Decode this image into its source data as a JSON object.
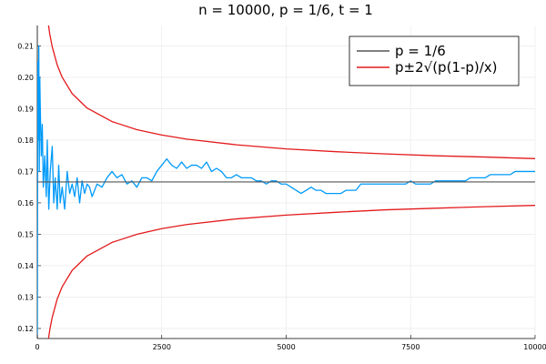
{
  "chart_data": {
    "type": "line",
    "title": "n = 10000,  p = 1/6,  t = 1",
    "xlabel": "",
    "ylabel": "",
    "xlim": [
      0,
      10000
    ],
    "ylim": [
      0.1168,
      0.2165
    ],
    "x_ticks": [
      0,
      2500,
      5000,
      7500,
      10000
    ],
    "x_tick_labels": [
      "0",
      "2500",
      "5000",
      "7500",
      "10000"
    ],
    "y_ticks": [
      0.12,
      0.13,
      0.14,
      0.15,
      0.16,
      0.17,
      0.18,
      0.19,
      0.2,
      0.21
    ],
    "y_tick_labels": [
      "0.12",
      "0.13",
      "0.14",
      "0.15",
      "0.16",
      "0.17",
      "0.18",
      "0.19",
      "0.20",
      "0.21"
    ],
    "grid": true,
    "legend_position": "top-right",
    "p": 0.16667,
    "series": [
      {
        "name": "",
        "color": "#009AFA",
        "x": [
          1,
          10,
          20,
          30,
          40,
          50,
          60,
          80,
          100,
          120,
          150,
          180,
          200,
          230,
          260,
          300,
          330,
          360,
          400,
          430,
          460,
          500,
          550,
          600,
          650,
          700,
          750,
          800,
          850,
          900,
          950,
          1000,
          1050,
          1100,
          1150,
          1200,
          1300,
          1400,
          1500,
          1600,
          1700,
          1800,
          1900,
          2000,
          2100,
          2200,
          2300,
          2400,
          2500,
          2600,
          2700,
          2800,
          2900,
          3000,
          3100,
          3200,
          3300,
          3400,
          3500,
          3600,
          3700,
          3800,
          3900,
          4000,
          4100,
          4200,
          4300,
          4400,
          4500,
          4600,
          4700,
          4800,
          4900,
          5000,
          5100,
          5200,
          5300,
          5400,
          5500,
          5600,
          5700,
          5800,
          5900,
          6000,
          6100,
          6200,
          6300,
          6400,
          6500,
          6600,
          6700,
          6800,
          6900,
          7000,
          7100,
          7200,
          7300,
          7400,
          7500,
          7600,
          7700,
          7800,
          7900,
          8000,
          8100,
          8200,
          8300,
          8400,
          8500,
          8600,
          8700,
          8800,
          8900,
          9000,
          9100,
          9200,
          9300,
          9400,
          9500,
          9600,
          9700,
          9800,
          9900,
          10000
        ],
        "values": [
          0.118,
          0.205,
          0.18,
          0.21,
          0.17,
          0.2,
          0.19,
          0.175,
          0.185,
          0.165,
          0.175,
          0.162,
          0.18,
          0.158,
          0.17,
          0.178,
          0.16,
          0.168,
          0.158,
          0.172,
          0.16,
          0.165,
          0.158,
          0.17,
          0.163,
          0.166,
          0.162,
          0.168,
          0.16,
          0.167,
          0.163,
          0.166,
          0.165,
          0.162,
          0.164,
          0.166,
          0.165,
          0.168,
          0.17,
          0.168,
          0.169,
          0.166,
          0.167,
          0.165,
          0.168,
          0.168,
          0.167,
          0.17,
          0.172,
          0.174,
          0.172,
          0.171,
          0.173,
          0.171,
          0.172,
          0.172,
          0.171,
          0.173,
          0.17,
          0.171,
          0.17,
          0.168,
          0.168,
          0.169,
          0.168,
          0.168,
          0.168,
          0.167,
          0.167,
          0.166,
          0.167,
          0.167,
          0.166,
          0.166,
          0.165,
          0.164,
          0.163,
          0.164,
          0.165,
          0.164,
          0.164,
          0.163,
          0.163,
          0.163,
          0.163,
          0.164,
          0.164,
          0.164,
          0.166,
          0.166,
          0.166,
          0.166,
          0.166,
          0.166,
          0.166,
          0.166,
          0.166,
          0.166,
          0.167,
          0.166,
          0.166,
          0.166,
          0.166,
          0.167,
          0.167,
          0.167,
          0.167,
          0.167,
          0.167,
          0.167,
          0.168,
          0.168,
          0.168,
          0.168,
          0.169,
          0.169,
          0.169,
          0.169,
          0.169,
          0.17,
          0.17,
          0.17,
          0.17,
          0.17
        ]
      },
      {
        "name": "p = 1/6",
        "color": "#555555",
        "x": [
          0,
          10000
        ],
        "values": [
          0.16667,
          0.16667
        ]
      },
      {
        "name": "p±2√(p(1-p)/x)",
        "color": "#E31A1C",
        "x": [
          200,
          250,
          300,
          400,
          500,
          700,
          1000,
          1500,
          2000,
          2500,
          3000,
          4000,
          5000,
          6000,
          7000,
          8000,
          9000,
          10000
        ],
        "values": [
          0.2194,
          0.2138,
          0.2097,
          0.2039,
          0.2,
          0.1948,
          0.1902,
          0.1859,
          0.1833,
          0.1816,
          0.1803,
          0.1785,
          0.1772,
          0.1763,
          0.1756,
          0.175,
          0.1746,
          0.1741
        ]
      },
      {
        "name": "",
        "color": "#E31A1C",
        "x": [
          200,
          250,
          300,
          400,
          500,
          700,
          1000,
          1500,
          2000,
          2500,
          3000,
          4000,
          5000,
          6000,
          7000,
          8000,
          9000,
          10000
        ],
        "values": [
          0.114,
          0.1195,
          0.1236,
          0.1294,
          0.1333,
          0.1385,
          0.1431,
          0.1474,
          0.15,
          0.1518,
          0.1531,
          0.1549,
          0.1561,
          0.157,
          0.1578,
          0.1583,
          0.1588,
          0.1592
        ]
      }
    ]
  }
}
